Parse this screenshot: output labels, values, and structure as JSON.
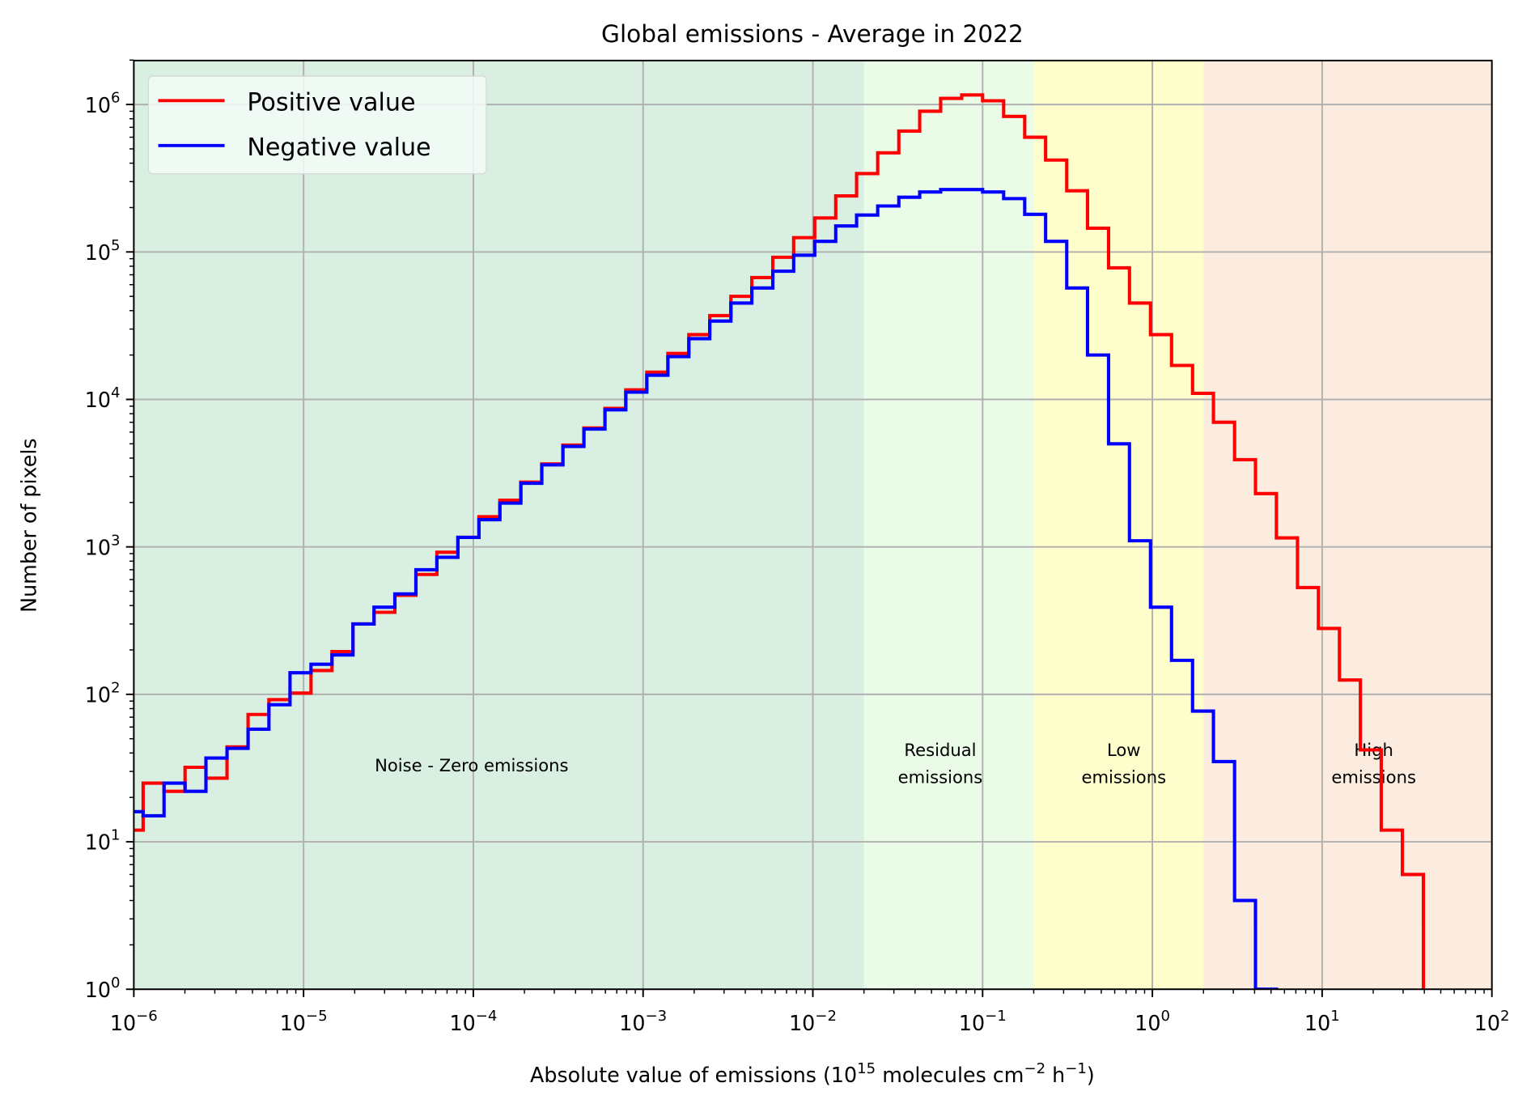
{
  "chart_data": {
    "type": "histogram-step",
    "title": "Global emissions - Average in 2022",
    "xlabel_parts": [
      {
        "text": "Absolute value of emissions (10",
        "sup": false
      },
      {
        "text": "15",
        "sup": true
      },
      {
        "text": " molecules cm",
        "sup": false
      },
      {
        "text": "−2",
        "sup": true
      },
      {
        "text": " h",
        "sup": false
      },
      {
        "text": "−1",
        "sup": true
      },
      {
        "text": ")",
        "sup": false
      }
    ],
    "ylabel": "Number of pixels",
    "x_scale": "log",
    "y_scale": "log",
    "xlim": [
      1e-06,
      100
    ],
    "ylim": [
      1,
      2000000
    ],
    "grid": true,
    "legend_position": "top-left",
    "x_ticks": [
      {
        "value": 1e-06,
        "base": "10",
        "exp": "−6"
      },
      {
        "value": 1e-05,
        "base": "10",
        "exp": "−5"
      },
      {
        "value": 0.0001,
        "base": "10",
        "exp": "−4"
      },
      {
        "value": 0.001,
        "base": "10",
        "exp": "−3"
      },
      {
        "value": 0.01,
        "base": "10",
        "exp": "−2"
      },
      {
        "value": 0.1,
        "base": "10",
        "exp": "−1"
      },
      {
        "value": 1,
        "base": "10",
        "exp": "0"
      },
      {
        "value": 10,
        "base": "10",
        "exp": "1"
      },
      {
        "value": 100,
        "base": "10",
        "exp": "2"
      }
    ],
    "y_ticks": [
      {
        "value": 1,
        "base": "10",
        "exp": "0"
      },
      {
        "value": 10,
        "base": "10",
        "exp": "1"
      },
      {
        "value": 100,
        "base": "10",
        "exp": "2"
      },
      {
        "value": 1000,
        "base": "10",
        "exp": "3"
      },
      {
        "value": 10000,
        "base": "10",
        "exp": "4"
      },
      {
        "value": 100000,
        "base": "10",
        "exp": "5"
      },
      {
        "value": 1000000,
        "base": "10",
        "exp": "6"
      }
    ],
    "regions": [
      {
        "label_lines": [
          "Noise - Zero emissions"
        ],
        "from": 1e-06,
        "to": 0.02,
        "color": "#d8efe2"
      },
      {
        "label_lines": [
          "Residual",
          "emissions"
        ],
        "from": 0.02,
        "to": 0.2,
        "color": "#eafbe8"
      },
      {
        "label_lines": [
          "Low",
          "emissions"
        ],
        "from": 0.2,
        "to": 2,
        "color": "#fefdcc"
      },
      {
        "label_lines": [
          "High",
          "emissions"
        ],
        "from": 2,
        "to": 100,
        "color": "#fcecdf"
      }
    ],
    "bin_edges": [
      8.53e-07,
      1.135e-06,
      1.507e-06,
      2.004e-06,
      2.66e-06,
      3.54e-06,
      4.71e-06,
      6.25e-06,
      8.32e-06,
      1.106e-05,
      1.47e-05,
      1.954e-05,
      2.6e-05,
      3.45e-05,
      4.59e-05,
      6.1e-05,
      8.11e-05,
      0.0001079,
      0.0001433,
      0.0001905,
      0.000253,
      0.000337,
      0.000448,
      0.000596,
      0.000791,
      0.001052,
      0.0014,
      0.00186,
      0.00247,
      0.00329,
      0.00437,
      0.00581,
      0.00771,
      0.01026,
      0.01364,
      0.0181,
      0.0241,
      0.0321,
      0.0426,
      0.0566,
      0.0753,
      0.1,
      0.133,
      0.177,
      0.235,
      0.313,
      0.415,
      0.552,
      0.733,
      0.975,
      1.297,
      1.725,
      2.29,
      3.05,
      4.05,
      5.38,
      7.16,
      9.51,
      12.65,
      16.8,
      22.3,
      29.7,
      39.5
    ],
    "series": [
      {
        "name": "Positive value",
        "color": "#ff0000",
        "values": [
          12,
          25,
          22,
          32,
          27,
          44,
          73,
          92,
          102,
          145,
          195,
          300,
          360,
          470,
          650,
          920,
          1160,
          1600,
          2070,
          2750,
          3650,
          4900,
          6400,
          8700,
          11600,
          15300,
          20500,
          27500,
          37000,
          50000,
          67000,
          92000,
          125000,
          170000,
          240000,
          340000,
          470000,
          660000,
          900000,
          1100000,
          1160000,
          1060000,
          830000,
          600000,
          420000,
          260000,
          145000,
          78000,
          45000,
          27500,
          17000,
          11000,
          7000,
          3900,
          2300,
          1150,
          530,
          280,
          125,
          42,
          12,
          6
        ]
      },
      {
        "name": "Negative value",
        "color": "#0000ff",
        "values": [
          16,
          15,
          25,
          22,
          37,
          43,
          58,
          85,
          140,
          160,
          185,
          300,
          390,
          480,
          700,
          850,
          1160,
          1530,
          1980,
          2700,
          3600,
          4800,
          6300,
          8500,
          11200,
          14600,
          19500,
          25800,
          34000,
          45000,
          57000,
          74000,
          95000,
          118000,
          150000,
          178000,
          205000,
          235000,
          255000,
          265000,
          265000,
          255000,
          230000,
          180000,
          118000,
          57000,
          20000,
          5000,
          1100,
          390,
          170,
          77,
          35,
          4,
          1,
          0,
          0,
          0,
          0,
          0,
          0,
          0
        ]
      }
    ]
  }
}
